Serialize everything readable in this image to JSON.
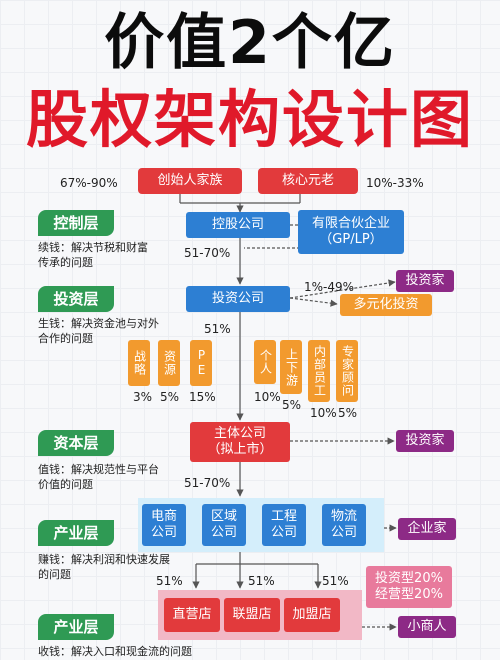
{
  "title": {
    "line1": "价值2个亿",
    "line2": "股权架构设计图"
  },
  "founders": {
    "left_pct": "67%-90%",
    "left_label": "创始人家族",
    "right_label": "核心元老",
    "right_pct": "10%-33%"
  },
  "layers": {
    "control": {
      "label": "控制层",
      "desc1": "续钱：解决节税和财富",
      "desc2": "传承的问题"
    },
    "invest": {
      "label": "投资层",
      "desc1": "生钱：解决资金池与对外",
      "desc2": "合作的问题"
    },
    "capital": {
      "label": "资本层",
      "desc1": "值钱：解决规范性与平台",
      "desc2": "价值的问题"
    },
    "industry1": {
      "label": "产业层",
      "desc1": "赚钱：解决利润和快速发展",
      "desc2": "的问题"
    },
    "industry2": {
      "label": "产业层",
      "desc1": "收钱：解决入口和现金流的问题"
    }
  },
  "holding": {
    "label": "控股公司",
    "pct": "51-70%"
  },
  "partnership": {
    "line1": "有限合伙企业",
    "line2": "（GP/LP）"
  },
  "investco": {
    "label": "投资公司",
    "pct": "51%",
    "right_pct": "1%-49%",
    "investor": "投资家",
    "diversified": "多元化投资"
  },
  "shareholders": [
    {
      "label": "战略",
      "pct": "3%"
    },
    {
      "label": "资源",
      "pct": "5%"
    },
    {
      "label": "PE",
      "pct": "15%"
    },
    {
      "label": "个人",
      "pct": "10%"
    },
    {
      "label": "上下游",
      "pct": "5%"
    },
    {
      "label": "内部员工",
      "pct": "10%"
    },
    {
      "label": "专家顾问",
      "pct": "5%"
    }
  ],
  "main": {
    "line1": "主体公司",
    "line2": "（拟上市）",
    "investor": "投资家",
    "pct": "51-70%"
  },
  "subsidiaries": [
    {
      "line1": "电商",
      "line2": "公司"
    },
    {
      "line1": "区域",
      "line2": "公司"
    },
    {
      "line1": "工程",
      "line2": "公司"
    },
    {
      "line1": "物流",
      "line2": "公司"
    }
  ],
  "entrepreneur": "企业家",
  "stores": {
    "pcts": [
      "51%",
      "51%",
      "51%"
    ],
    "items": [
      "直营店",
      "联盟店",
      "加盟店"
    ],
    "note1": "投资型20%",
    "note2": "经营型20%",
    "small_merchant": "小商人"
  },
  "colors": {
    "title_red": "#e0192a",
    "red": "#e23a3c",
    "blue": "#2d7fd3",
    "orange": "#f29a2e",
    "purple": "#8d2a86",
    "green": "#2f9a54",
    "pink": "#e87a9c"
  }
}
